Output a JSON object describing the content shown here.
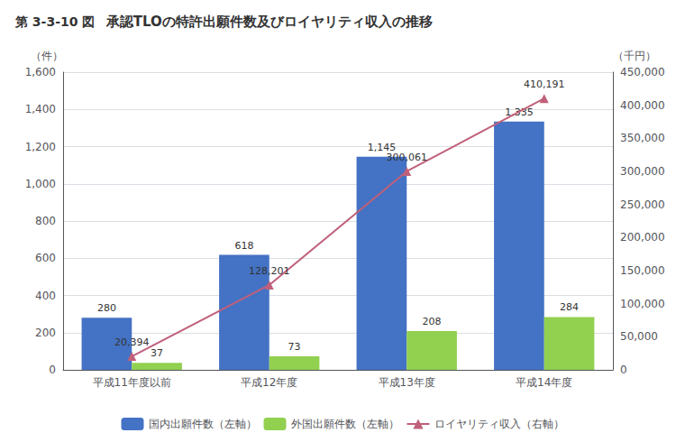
{
  "chart_data": {
    "type": "bar",
    "title": "承認TLOの特許出願件数及びロイヤリティ収入の推移",
    "annotations": [
      "第 3-3-10 図"
    ],
    "categories": [
      "平成11年度以前",
      "平成12年度",
      "平成13年度",
      "平成14年度"
    ],
    "series": [
      {
        "name": "国内出願件数（左軸）",
        "type": "bar",
        "color": "#4472C4",
        "values": [
          280,
          618,
          1145,
          1335
        ],
        "value_labels": [
          "280",
          "618",
          "1,145",
          "1,335"
        ]
      },
      {
        "name": "外国出願件数（左軸）",
        "type": "bar",
        "color": "#92D050",
        "values": [
          37,
          73,
          208,
          284
        ],
        "value_labels": [
          "37",
          "73",
          "208",
          "284"
        ]
      },
      {
        "name": "ロイヤリティ収入（右軸）",
        "type": "line",
        "axis": "y2",
        "color": "#C0607A",
        "marker": "triangle",
        "values": [
          20394,
          128201,
          300061,
          410191
        ],
        "value_labels": [
          "20,394",
          "128,201",
          "300,061",
          "410,191"
        ]
      }
    ],
    "y_label": "（件）",
    "y2_label": "（千円）",
    "ylim": [
      0,
      1600
    ],
    "yticks": [
      0,
      200,
      400,
      600,
      800,
      {
        "value": 1000,
        "label": "1,000"
      },
      {
        "value": 1200,
        "label": "1,200"
      },
      {
        "value": 1400,
        "label": "1,400"
      },
      {
        "value": 1600,
        "label": "1,600"
      }
    ],
    "y2lim": [
      0,
      450000
    ],
    "y2ticks": [
      0,
      {
        "value": 50000,
        "label": "50,000"
      },
      {
        "value": 100000,
        "label": "100,000"
      },
      {
        "value": 150000,
        "label": "150,000"
      },
      {
        "value": 200000,
        "label": "200,000"
      },
      {
        "value": 250000,
        "label": "250,000"
      },
      {
        "value": 300000,
        "label": "300,000"
      },
      {
        "value": 350000,
        "label": "350,000"
      },
      {
        "value": 400000,
        "label": "400,000"
      },
      {
        "value": 450000,
        "label": "450,000"
      }
    ],
    "grid": true,
    "legend": "bottom",
    "data_labels": true
  }
}
